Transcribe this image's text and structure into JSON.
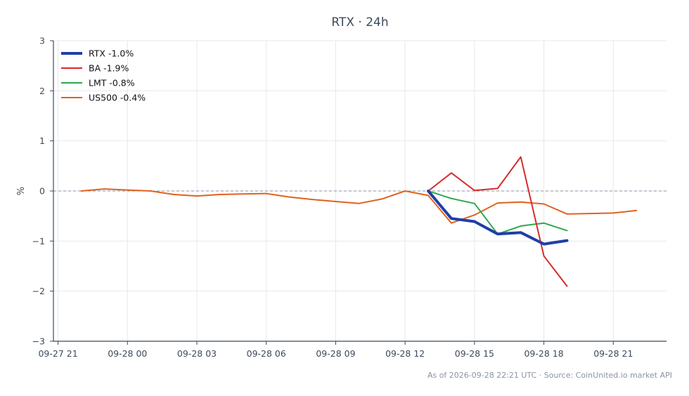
{
  "chart_data": {
    "type": "line",
    "title": "RTX · 24h",
    "xlabel": "",
    "ylabel": "%",
    "xlim": [
      -0.2,
      26.3
    ],
    "ylim": [
      -3,
      3
    ],
    "x_ticks": [
      {
        "x": 0,
        "label": "09-27 21"
      },
      {
        "x": 3,
        "label": "09-28 00"
      },
      {
        "x": 6,
        "label": "09-28 03"
      },
      {
        "x": 9,
        "label": "09-28 06"
      },
      {
        "x": 12,
        "label": "09-28 09"
      },
      {
        "x": 15,
        "label": "09-28 12"
      },
      {
        "x": 18,
        "label": "09-28 15"
      },
      {
        "x": 21,
        "label": "09-28 18"
      },
      {
        "x": 24,
        "label": "09-28 21"
      }
    ],
    "y_ticks": [
      {
        "y": 3,
        "label": "3"
      },
      {
        "y": 2,
        "label": "2"
      },
      {
        "y": 1,
        "label": "1"
      },
      {
        "y": 0,
        "label": "0"
      },
      {
        "y": -1,
        "label": "−1"
      },
      {
        "y": -2,
        "label": "−2"
      },
      {
        "y": -3,
        "label": "−3"
      }
    ],
    "grid": true,
    "zero_line": true,
    "legend_position": "top-left",
    "series": [
      {
        "name": "RTX -1.0%",
        "color": "#1f3fa6",
        "width": 4,
        "x": [
          16,
          17,
          18,
          19,
          20,
          21,
          22
        ],
        "y": [
          0,
          -0.55,
          -0.61,
          -0.86,
          -0.83,
          -1.06,
          -0.99
        ]
      },
      {
        "name": "BA -1.9%",
        "color": "#d62c2c",
        "width": 2,
        "x": [
          16,
          17,
          18,
          19,
          20,
          21,
          22
        ],
        "y": [
          0,
          0.36,
          0.01,
          0.05,
          0.68,
          -1.3,
          -1.9
        ]
      },
      {
        "name": "LMT -0.8%",
        "color": "#2ea84a",
        "width": 2,
        "x": [
          16,
          17,
          18,
          19,
          20,
          21,
          22
        ],
        "y": [
          0,
          -0.15,
          -0.25,
          -0.86,
          -0.7,
          -0.64,
          -0.79
        ]
      },
      {
        "name": "US500 -0.4%",
        "color": "#e0621f",
        "width": 2,
        "x": [
          1,
          2,
          3,
          4,
          5,
          6,
          7,
          8,
          9,
          10,
          11,
          12,
          13,
          14,
          15,
          16,
          17,
          18,
          19,
          20,
          21,
          22,
          23,
          24,
          25
        ],
        "y": [
          0,
          0.04,
          0.02,
          0.0,
          -0.07,
          -0.1,
          -0.07,
          -0.06,
          -0.05,
          -0.12,
          -0.17,
          -0.21,
          -0.25,
          -0.16,
          0.0,
          -0.09,
          -0.64,
          -0.48,
          -0.24,
          -0.22,
          -0.26,
          -0.46,
          -0.45,
          -0.44,
          -0.39
        ]
      }
    ]
  },
  "footer": "As of 2026-09-28 22:21 UTC · Source: CoinUnited.io market API"
}
